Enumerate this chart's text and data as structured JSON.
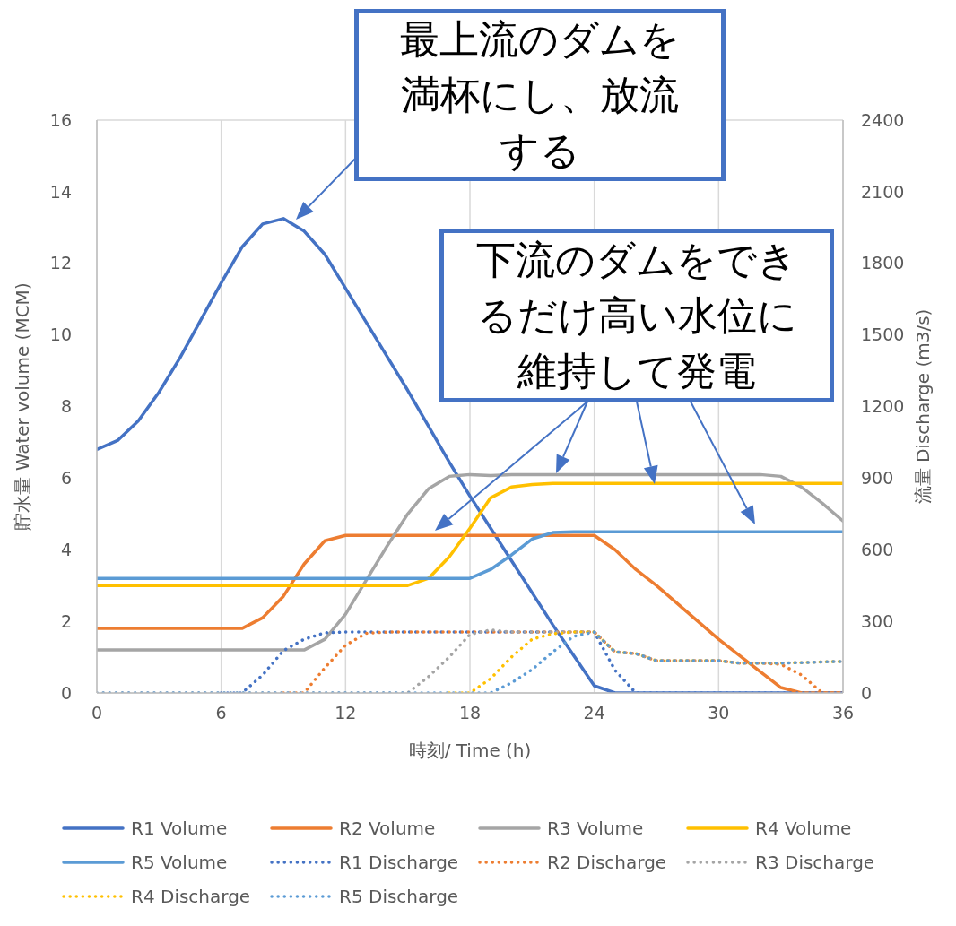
{
  "chart_data": {
    "type": "line",
    "xlabel": "時刻/ Time (h)",
    "ylabel": "貯水量 Water volume (MCM)",
    "y2label": "流量 Discharge (m3/s)",
    "x": [
      0,
      1,
      2,
      3,
      4,
      5,
      6,
      7,
      8,
      9,
      10,
      11,
      12,
      13,
      14,
      15,
      16,
      17,
      18,
      19,
      20,
      21,
      22,
      23,
      24,
      25,
      26,
      27,
      28,
      29,
      30,
      31,
      32,
      33,
      34,
      35,
      36
    ],
    "xlim": [
      0,
      36
    ],
    "xticks": [
      0,
      6,
      12,
      18,
      24,
      30,
      36
    ],
    "ylim": [
      0,
      16
    ],
    "yticks": [
      0,
      2,
      4,
      6,
      8,
      10,
      12,
      14,
      16
    ],
    "y2lim": [
      0,
      2400
    ],
    "y2ticks": [
      0,
      300,
      600,
      900,
      1200,
      1500,
      1800,
      2100,
      2400
    ],
    "grid": true,
    "legend": "bottom",
    "series": [
      {
        "name": "R1 Volume",
        "color": "#4472c4",
        "line_style": "solid",
        "values": [
          6.8,
          7.05,
          7.6,
          8.4,
          9.35,
          10.4,
          11.45,
          12.45,
          13.1,
          13.25,
          12.9,
          12.25,
          11.3,
          10.35,
          9.4,
          8.45,
          7.45,
          6.45,
          5.5,
          4.6,
          3.7,
          2.8,
          1.9,
          1.05,
          0.2,
          0,
          0,
          0,
          0,
          0,
          0,
          0,
          0,
          0,
          0,
          0,
          0
        ]
      },
      {
        "name": "R2 Volume",
        "color": "#ed7d31",
        "line_style": "solid",
        "values": [
          1.8,
          1.8,
          1.8,
          1.8,
          1.8,
          1.8,
          1.8,
          1.8,
          2.1,
          2.7,
          3.6,
          4.25,
          4.4,
          4.4,
          4.4,
          4.4,
          4.4,
          4.4,
          4.4,
          4.4,
          4.4,
          4.4,
          4.4,
          4.4,
          4.4,
          4.0,
          3.45,
          3.0,
          2.5,
          2.0,
          1.5,
          1.05,
          0.6,
          0.15,
          0,
          0,
          0
        ]
      },
      {
        "name": "R3 Volume",
        "color": "#a5a5a5",
        "line_style": "solid",
        "values": [
          1.2,
          1.2,
          1.2,
          1.2,
          1.2,
          1.2,
          1.2,
          1.2,
          1.2,
          1.2,
          1.2,
          1.5,
          2.2,
          3.15,
          4.1,
          5.0,
          5.7,
          6.05,
          6.1,
          6.07,
          6.1,
          6.1,
          6.1,
          6.1,
          6.1,
          6.1,
          6.1,
          6.1,
          6.1,
          6.1,
          6.1,
          6.1,
          6.1,
          6.05,
          5.75,
          5.3,
          4.8
        ]
      },
      {
        "name": "R4 Volume",
        "color": "#ffc000",
        "line_style": "solid",
        "values": [
          3.0,
          3.0,
          3.0,
          3.0,
          3.0,
          3.0,
          3.0,
          3.0,
          3.0,
          3.0,
          3.0,
          3.0,
          3.0,
          3.0,
          3.0,
          3.0,
          3.2,
          3.8,
          4.6,
          5.45,
          5.75,
          5.82,
          5.85,
          5.85,
          5.85,
          5.85,
          5.85,
          5.85,
          5.85,
          5.85,
          5.85,
          5.85,
          5.85,
          5.85,
          5.85,
          5.85,
          5.85
        ]
      },
      {
        "name": "R5 Volume",
        "color": "#5b9bd5",
        "line_style": "solid",
        "values": [
          3.2,
          3.2,
          3.2,
          3.2,
          3.2,
          3.2,
          3.2,
          3.2,
          3.2,
          3.2,
          3.2,
          3.2,
          3.2,
          3.2,
          3.2,
          3.2,
          3.2,
          3.2,
          3.2,
          3.45,
          3.85,
          4.3,
          4.48,
          4.5,
          4.5,
          4.5,
          4.5,
          4.5,
          4.5,
          4.5,
          4.5,
          4.5,
          4.5,
          4.5,
          4.5,
          4.5,
          4.5
        ]
      },
      {
        "name": "R1 Discharge",
        "color": "#4472c4",
        "line_style": "dotted",
        "axis": "y2",
        "values": [
          null,
          null,
          null,
          null,
          null,
          null,
          0,
          0,
          75,
          177,
          225,
          252,
          255,
          255,
          255,
          255,
          255,
          255,
          255,
          255,
          255,
          255,
          255,
          255,
          255,
          95,
          0,
          0,
          0,
          0,
          0,
          0,
          0,
          0,
          0,
          0,
          0
        ]
      },
      {
        "name": "R2 Discharge",
        "color": "#ed7d31",
        "line_style": "dotted",
        "axis": "y2",
        "values": [
          null,
          null,
          null,
          null,
          null,
          null,
          null,
          null,
          null,
          0,
          0,
          105,
          200,
          250,
          255,
          255,
          255,
          255,
          255,
          255,
          255,
          255,
          255,
          255,
          255,
          172,
          165,
          135,
          135,
          135,
          135,
          125,
          125,
          120,
          75,
          0,
          0
        ]
      },
      {
        "name": "R3 Discharge",
        "color": "#a5a5a5",
        "line_style": "dotted",
        "axis": "y2",
        "values": [
          0,
          0,
          0,
          0,
          0,
          0,
          0,
          0,
          0,
          0,
          0,
          0,
          0,
          0,
          0,
          0,
          68,
          150,
          245,
          264,
          255,
          255,
          255,
          255,
          255,
          172,
          165,
          135,
          135,
          135,
          135,
          125,
          125,
          125,
          127,
          130,
          132
        ]
      },
      {
        "name": "R4 Discharge",
        "color": "#ffc000",
        "line_style": "dotted",
        "axis": "y2",
        "values": [
          null,
          null,
          null,
          null,
          null,
          null,
          null,
          null,
          null,
          null,
          null,
          null,
          null,
          null,
          null,
          null,
          null,
          0,
          0,
          60,
          150,
          225,
          248,
          255,
          255,
          172,
          165,
          135,
          135,
          135,
          135,
          125,
          125,
          125,
          127,
          130,
          132
        ]
      },
      {
        "name": "R5 Discharge",
        "color": "#5b9bd5",
        "line_style": "dotted",
        "axis": "y2",
        "values": [
          0,
          0,
          0,
          0,
          0,
          0,
          0,
          0,
          0,
          0,
          0,
          0,
          0,
          0,
          0,
          0,
          0,
          0,
          0,
          0,
          42,
          98,
          172,
          237,
          255,
          172,
          165,
          135,
          135,
          135,
          135,
          125,
          125,
          125,
          127,
          130,
          132
        ]
      }
    ],
    "annotations": [
      "最上流のダムを満杯にし、放流する",
      "下流のダムをできるだけ高い水位に維持して発電"
    ]
  }
}
